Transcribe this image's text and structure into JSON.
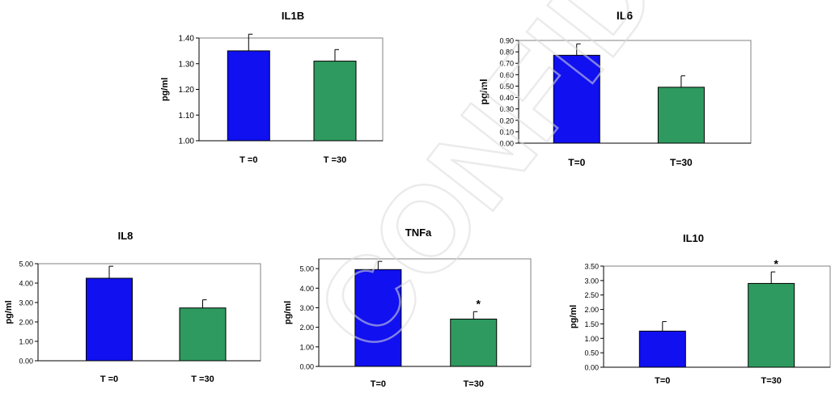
{
  "colors": {
    "t0": "#1010f0",
    "t30": "#2e9a5f",
    "watermark": "#dfdfdf"
  },
  "watermark": {
    "text": "CONFIDENTIAL"
  },
  "chart_data": [
    {
      "type": "bar",
      "title": "IL1B",
      "ylabel": "pg/ml",
      "categories": [
        "T =0",
        "T =30"
      ],
      "values": [
        1.35,
        1.31
      ],
      "errors": [
        0.065,
        0.045
      ],
      "ylim": [
        1.0,
        1.4
      ],
      "yticks": [
        "1.00",
        "1.10",
        "1.20",
        "1.30",
        "1.40"
      ],
      "annotations": [
        "",
        ""
      ],
      "grid": false,
      "legend": "none"
    },
    {
      "type": "bar",
      "title": "IL6",
      "ylabel": "pg/ml",
      "categories": [
        "T=0",
        "T=30"
      ],
      "values": [
        0.77,
        0.49
      ],
      "errors": [
        0.1,
        0.1
      ],
      "ylim": [
        0.0,
        0.9
      ],
      "yticks": [
        "0.00",
        "0.10",
        "0.20",
        "0.30",
        "0.40",
        "0.50",
        "0.60",
        "0.70",
        "0.80",
        "0.90"
      ],
      "annotations": [
        "",
        ""
      ],
      "grid": false,
      "legend": "none"
    },
    {
      "type": "bar",
      "title": "IL8",
      "ylabel": "pg/ml",
      "categories": [
        "T =0",
        "T =30"
      ],
      "values": [
        4.25,
        2.72
      ],
      "errors": [
        0.62,
        0.42
      ],
      "ylim": [
        0.0,
        5.0
      ],
      "yticks": [
        "0.00",
        "1.00",
        "2.00",
        "3.00",
        "4.00",
        "5.00"
      ],
      "annotations": [
        "",
        ""
      ],
      "grid": false,
      "legend": "none"
    },
    {
      "type": "bar",
      "title": "TNFa",
      "ylabel": "pg/ml",
      "categories": [
        "T=0",
        "T=30"
      ],
      "values": [
        4.95,
        2.42
      ],
      "errors": [
        0.42,
        0.38
      ],
      "ylim": [
        0.0,
        5.5
      ],
      "yticks": [
        "0.00",
        "1.00",
        "2.00",
        "3.00",
        "4.00",
        "5.00"
      ],
      "annotations": [
        "",
        "*"
      ],
      "grid": false,
      "legend": "none"
    },
    {
      "type": "bar",
      "title": "IL10",
      "ylabel": "pg/ml",
      "categories": [
        "T=0",
        "T=30"
      ],
      "values": [
        1.25,
        2.9
      ],
      "errors": [
        0.33,
        0.4
      ],
      "ylim": [
        0.0,
        3.5
      ],
      "yticks": [
        "0.00",
        "0.50",
        "1.00",
        "1.50",
        "2.00",
        "2.50",
        "3.00",
        "3.50"
      ],
      "annotations": [
        "",
        "*"
      ],
      "grid": false,
      "legend": "none"
    }
  ]
}
